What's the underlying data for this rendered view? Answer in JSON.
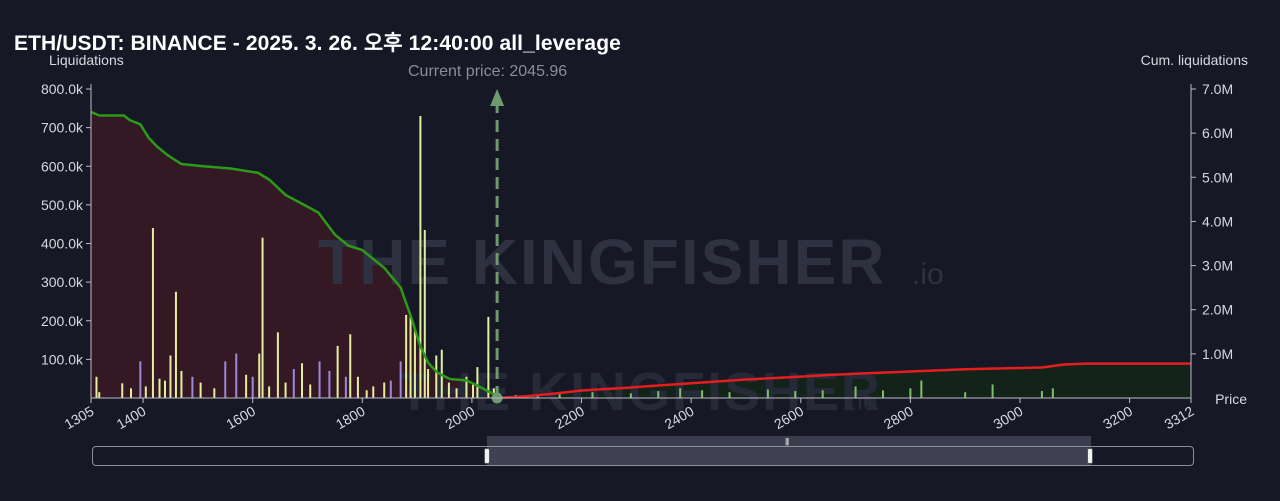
{
  "header": {
    "title": "ETH/USDT: BINANCE - 2025. 3. 26. 오후 12:40:00 all_leverage",
    "left_axis_title": "Liquidations",
    "right_axis_title": "Cum. liquidations",
    "price_axis_title": "Price",
    "current_price_label": "Current price: 2045.96"
  },
  "watermark": {
    "text": "THE KINGFISHER",
    "suffix": ".io"
  },
  "colors": {
    "background": "#161826",
    "shade_left": "#3a1a26",
    "shade_right": "#142519",
    "cum_short": "#2a9a18",
    "cum_long": "#e61e1e",
    "bar_yellow": "#e5ee9e",
    "bar_purple": "#9a8ad8",
    "bar_green": "#7fbf6a",
    "current_price": "#6f9a6f"
  },
  "chart_data": {
    "type": "bar+line",
    "current_price": 2045.96,
    "x_ticks": [
      1305,
      1400,
      1600,
      1800,
      2000,
      2200,
      2400,
      2600,
      2800,
      3000,
      3200,
      3312
    ],
    "xlim": [
      1305,
      3312
    ],
    "left_axis": {
      "label": "Liquidations",
      "ylim": [
        0,
        800000
      ],
      "ticks": [
        100000,
        200000,
        300000,
        400000,
        500000,
        600000,
        700000,
        800000
      ],
      "tick_labels": [
        "100.0k",
        "200.0k",
        "300.0k",
        "400.0k",
        "500.0k",
        "600.0k",
        "700.0k",
        "800.0k"
      ]
    },
    "right_axis": {
      "label": "Cum. liquidations",
      "ylim": [
        0,
        7000000
      ],
      "ticks": [
        1000000,
        2000000,
        3000000,
        4000000,
        5000000,
        6000000,
        7000000
      ],
      "tick_labels": [
        "1.0M",
        "2.0M",
        "3.0M",
        "4.0M",
        "5.0M",
        "6.0M",
        "7.0M"
      ]
    },
    "cum_below": [
      [
        1305,
        6480000
      ],
      [
        1320,
        6400000
      ],
      [
        1365,
        6400000
      ],
      [
        1375,
        6300000
      ],
      [
        1395,
        6200000
      ],
      [
        1410,
        5900000
      ],
      [
        1425,
        5700000
      ],
      [
        1445,
        5500000
      ],
      [
        1470,
        5300000
      ],
      [
        1510,
        5250000
      ],
      [
        1560,
        5200000
      ],
      [
        1610,
        5100000
      ],
      [
        1630,
        4950000
      ],
      [
        1660,
        4600000
      ],
      [
        1690,
        4400000
      ],
      [
        1720,
        4200000
      ],
      [
        1750,
        3700000
      ],
      [
        1775,
        3450000
      ],
      [
        1800,
        3350000
      ],
      [
        1840,
        2950000
      ],
      [
        1870,
        2500000
      ],
      [
        1890,
        1800000
      ],
      [
        1905,
        1200000
      ],
      [
        1920,
        800000
      ],
      [
        1935,
        600000
      ],
      [
        1945,
        520000
      ],
      [
        1960,
        430000
      ],
      [
        1990,
        400000
      ],
      [
        2010,
        280000
      ],
      [
        2030,
        150000
      ],
      [
        2046,
        50000
      ]
    ],
    "cum_above": [
      [
        2046,
        0
      ],
      [
        2100,
        40000
      ],
      [
        2150,
        100000
      ],
      [
        2200,
        170000
      ],
      [
        2280,
        230000
      ],
      [
        2360,
        300000
      ],
      [
        2420,
        350000
      ],
      [
        2500,
        420000
      ],
      [
        2580,
        470000
      ],
      [
        2650,
        520000
      ],
      [
        2720,
        560000
      ],
      [
        2800,
        600000
      ],
      [
        2900,
        650000
      ],
      [
        3000,
        680000
      ],
      [
        3040,
        690000
      ],
      [
        3080,
        760000
      ],
      [
        3120,
        780000
      ],
      [
        3312,
        780000
      ]
    ],
    "bars": [
      {
        "x": 1315,
        "v": 55000,
        "color": "yellow"
      },
      {
        "x": 1320,
        "v": 15000,
        "color": "yellow"
      },
      {
        "x": 1362,
        "v": 38000,
        "color": "yellow"
      },
      {
        "x": 1378,
        "v": 25000,
        "color": "yellow"
      },
      {
        "x": 1395,
        "v": 95000,
        "color": "purple"
      },
      {
        "x": 1405,
        "v": 30000,
        "color": "yellow"
      },
      {
        "x": 1418,
        "v": 440000,
        "color": "yellow"
      },
      {
        "x": 1430,
        "v": 50000,
        "color": "yellow"
      },
      {
        "x": 1440,
        "v": 45000,
        "color": "yellow"
      },
      {
        "x": 1450,
        "v": 110000,
        "color": "yellow"
      },
      {
        "x": 1460,
        "v": 275000,
        "color": "yellow"
      },
      {
        "x": 1470,
        "v": 70000,
        "color": "yellow"
      },
      {
        "x": 1490,
        "v": 55000,
        "color": "purple"
      },
      {
        "x": 1505,
        "v": 40000,
        "color": "yellow"
      },
      {
        "x": 1530,
        "v": 25000,
        "color": "yellow"
      },
      {
        "x": 1550,
        "v": 95000,
        "color": "purple"
      },
      {
        "x": 1570,
        "v": 115000,
        "color": "purple"
      },
      {
        "x": 1588,
        "v": 60000,
        "color": "yellow"
      },
      {
        "x": 1600,
        "v": 55000,
        "color": "purple"
      },
      {
        "x": 1612,
        "v": 115000,
        "color": "yellow"
      },
      {
        "x": 1618,
        "v": 415000,
        "color": "yellow"
      },
      {
        "x": 1630,
        "v": 30000,
        "color": "yellow"
      },
      {
        "x": 1646,
        "v": 170000,
        "color": "yellow"
      },
      {
        "x": 1660,
        "v": 40000,
        "color": "yellow"
      },
      {
        "x": 1675,
        "v": 75000,
        "color": "purple"
      },
      {
        "x": 1690,
        "v": 90000,
        "color": "yellow"
      },
      {
        "x": 1705,
        "v": 35000,
        "color": "yellow"
      },
      {
        "x": 1722,
        "v": 95000,
        "color": "purple"
      },
      {
        "x": 1740,
        "v": 70000,
        "color": "purple"
      },
      {
        "x": 1755,
        "v": 135000,
        "color": "yellow"
      },
      {
        "x": 1770,
        "v": 55000,
        "color": "purple"
      },
      {
        "x": 1778,
        "v": 165000,
        "color": "yellow"
      },
      {
        "x": 1792,
        "v": 55000,
        "color": "yellow"
      },
      {
        "x": 1808,
        "v": 20000,
        "color": "yellow"
      },
      {
        "x": 1820,
        "v": 30000,
        "color": "yellow"
      },
      {
        "x": 1840,
        "v": 40000,
        "color": "yellow"
      },
      {
        "x": 1852,
        "v": 45000,
        "color": "purple"
      },
      {
        "x": 1870,
        "v": 95000,
        "color": "purple"
      },
      {
        "x": 1880,
        "v": 215000,
        "color": "yellow"
      },
      {
        "x": 1888,
        "v": 210000,
        "color": "yellow"
      },
      {
        "x": 1896,
        "v": 175000,
        "color": "yellow"
      },
      {
        "x": 1906,
        "v": 730000,
        "color": "yellow"
      },
      {
        "x": 1914,
        "v": 435000,
        "color": "yellow"
      },
      {
        "x": 1920,
        "v": 75000,
        "color": "yellow"
      },
      {
        "x": 1935,
        "v": 110000,
        "color": "yellow"
      },
      {
        "x": 1945,
        "v": 125000,
        "color": "yellow"
      },
      {
        "x": 1958,
        "v": 40000,
        "color": "yellow"
      },
      {
        "x": 1972,
        "v": 25000,
        "color": "yellow"
      },
      {
        "x": 1990,
        "v": 55000,
        "color": "yellow"
      },
      {
        "x": 2002,
        "v": 35000,
        "color": "yellow"
      },
      {
        "x": 2010,
        "v": 80000,
        "color": "yellow"
      },
      {
        "x": 2030,
        "v": 210000,
        "color": "yellow"
      },
      {
        "x": 2040,
        "v": 25000,
        "color": "yellow"
      },
      {
        "x": 2080,
        "v": 8000,
        "color": "green"
      },
      {
        "x": 2120,
        "v": 10000,
        "color": "green"
      },
      {
        "x": 2160,
        "v": 12000,
        "color": "green"
      },
      {
        "x": 2220,
        "v": 15000,
        "color": "green"
      },
      {
        "x": 2290,
        "v": 12000,
        "color": "green"
      },
      {
        "x": 2340,
        "v": 18000,
        "color": "green"
      },
      {
        "x": 2380,
        "v": 25000,
        "color": "green"
      },
      {
        "x": 2420,
        "v": 20000,
        "color": "green"
      },
      {
        "x": 2470,
        "v": 15000,
        "color": "green"
      },
      {
        "x": 2540,
        "v": 22000,
        "color": "green"
      },
      {
        "x": 2590,
        "v": 18000,
        "color": "green"
      },
      {
        "x": 2640,
        "v": 20000,
        "color": "green"
      },
      {
        "x": 2700,
        "v": 30000,
        "color": "green"
      },
      {
        "x": 2750,
        "v": 20000,
        "color": "green"
      },
      {
        "x": 2800,
        "v": 25000,
        "color": "green"
      },
      {
        "x": 2820,
        "v": 45000,
        "color": "green"
      },
      {
        "x": 2900,
        "v": 15000,
        "color": "green"
      },
      {
        "x": 2950,
        "v": 35000,
        "color": "green"
      },
      {
        "x": 3040,
        "v": 18000,
        "color": "green"
      },
      {
        "x": 3060,
        "v": 25000,
        "color": "green"
      }
    ]
  }
}
